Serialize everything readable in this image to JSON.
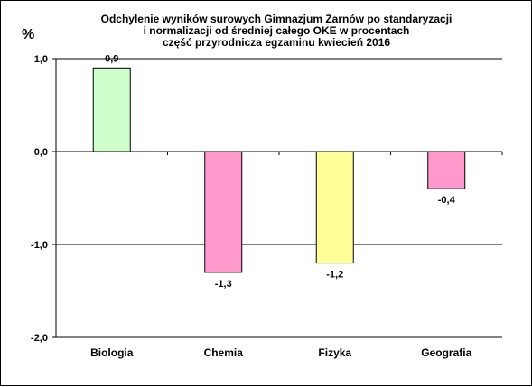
{
  "chart_data": {
    "type": "bar",
    "title_lines": [
      "Odchylenie wyników surowych Gimnazjum Żarnów po standaryzacji",
      "i normalizacji od średniej całego OKE w procentach",
      "część przyrodnicza egzaminu kwiecień 2016"
    ],
    "ylabel": "%",
    "xlabel": "",
    "categories": [
      "Biologia",
      "Chemia",
      "Fizyka",
      "Geografia"
    ],
    "values": [
      0.9,
      -1.3,
      -1.2,
      -0.4
    ],
    "value_labels": [
      "0,9",
      "-1,3",
      "-1,2",
      "-0,4"
    ],
    "ylim": [
      -2.0,
      1.0
    ],
    "yticks": [
      1.0,
      0.0,
      -1.0,
      -2.0
    ],
    "ytick_labels": [
      "1,0",
      "0,0",
      "-1,0",
      "-2,0"
    ],
    "grid": true,
    "legend": "none",
    "colors": {
      "bars": [
        "#ccffcc",
        "#ff99cc",
        "#ffff99",
        "#ff99cc"
      ],
      "bar_outline": "#000000",
      "axis": "#000000",
      "background": "#ffffff"
    }
  }
}
